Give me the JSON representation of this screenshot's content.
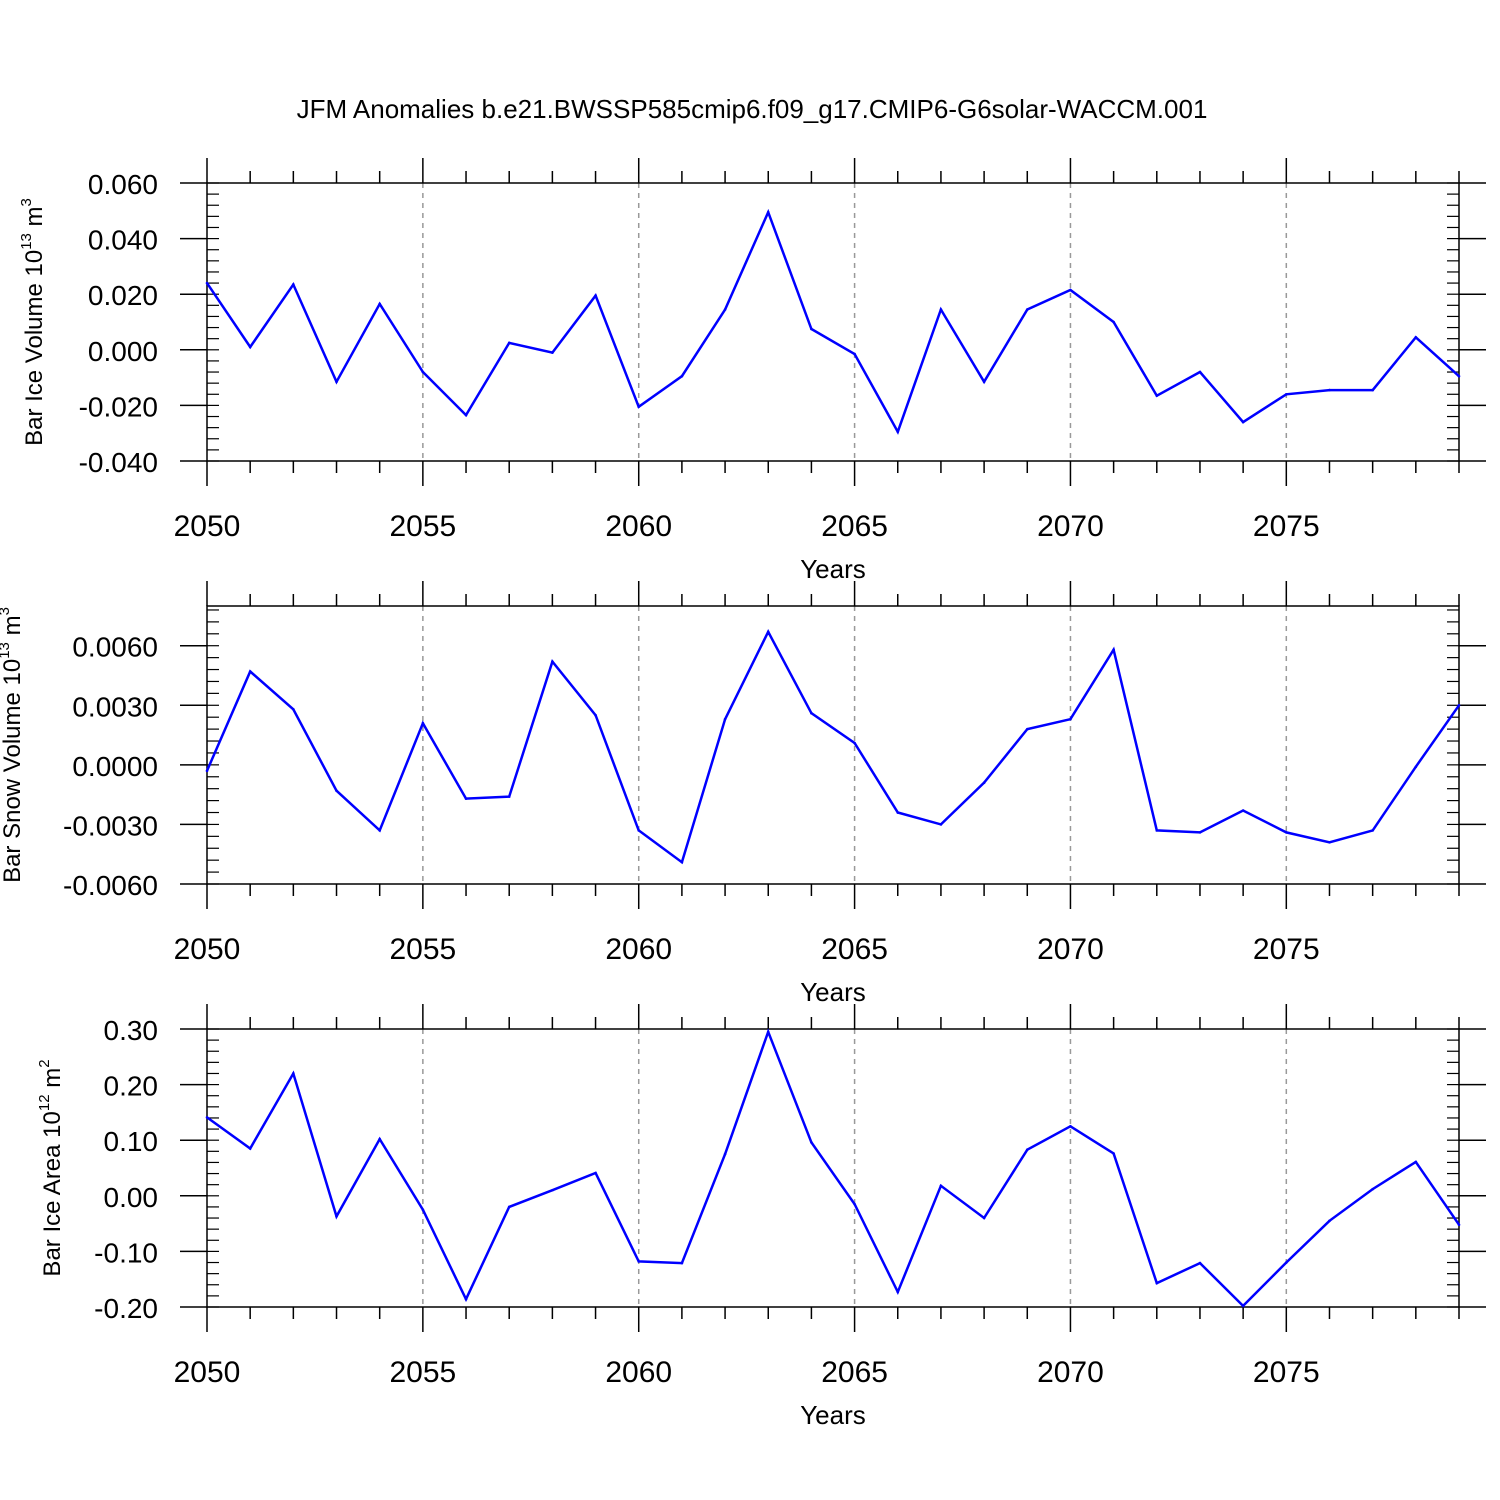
{
  "title": "JFM Anomalies b.e21.BWSSP585cmip6.f09_g17.CMIP6-G6solar-WACCM.001",
  "series_color": "#0000ff",
  "chart_data": [
    {
      "type": "line",
      "title": "JFM Anomalies b.e21.BWSSP585cmip6.f09_g17.CMIP6-G6solar-WACCM.001",
      "xlabel": "Years",
      "ylabel": {
        "text": "Bar Ice Volume 10",
        "exp": "13",
        "unit": " m",
        "unit_exp": "3"
      },
      "xlim": [
        2050,
        2079
      ],
      "ylim": [
        -0.04,
        0.06
      ],
      "yticks": [
        0.06,
        0.04,
        0.02,
        0.0,
        -0.02,
        -0.04
      ],
      "ytick_labels": [
        "0.060",
        "0.040",
        "0.020",
        "0.000",
        "-0.020",
        "-0.040"
      ],
      "xticks": [
        2050,
        2055,
        2060,
        2065,
        2070,
        2075
      ],
      "xtick_labels": [
        "2050",
        "2055",
        "2060",
        "2065",
        "2070",
        "2075"
      ],
      "grid": "dashed vertical at major x ticks",
      "x": [
        2050,
        2051,
        2052,
        2053,
        2054,
        2055,
        2056,
        2057,
        2058,
        2059,
        2060,
        2061,
        2062,
        2063,
        2064,
        2065,
        2066,
        2067,
        2068,
        2069,
        2070,
        2071,
        2072,
        2073,
        2074,
        2075,
        2076,
        2077,
        2078,
        2079
      ],
      "values": [
        0.024,
        0.001,
        0.0235,
        -0.0115,
        0.0165,
        -0.008,
        -0.0235,
        0.0025,
        -0.001,
        0.0195,
        -0.0205,
        -0.0095,
        0.0145,
        0.0495,
        0.0075,
        -0.0015,
        -0.0295,
        0.0145,
        -0.0115,
        0.0145,
        0.0215,
        0.01,
        -0.0165,
        -0.008,
        -0.026,
        -0.016,
        -0.0145,
        -0.0145,
        0.0045,
        -0.0095
      ]
    },
    {
      "type": "line",
      "xlabel": "Years",
      "ylabel": {
        "text": "Bar Snow Volume 10",
        "exp": "13",
        "unit": " m",
        "unit_exp": "3"
      },
      "xlim": [
        2050,
        2079
      ],
      "ylim": [
        -0.006,
        0.008
      ],
      "yticks": [
        0.006,
        0.003,
        0.0,
        -0.003,
        -0.006
      ],
      "ytick_labels": [
        "0.0060",
        "0.0030",
        "0.0000",
        "-0.0030",
        "-0.0060"
      ],
      "xticks": [
        2050,
        2055,
        2060,
        2065,
        2070,
        2075
      ],
      "xtick_labels": [
        "2050",
        "2055",
        "2060",
        "2065",
        "2070",
        "2075"
      ],
      "grid": "dashed vertical at major x ticks",
      "x": [
        2050,
        2051,
        2052,
        2053,
        2054,
        2055,
        2056,
        2057,
        2058,
        2059,
        2060,
        2061,
        2062,
        2063,
        2064,
        2065,
        2066,
        2067,
        2068,
        2069,
        2070,
        2071,
        2072,
        2073,
        2074,
        2075,
        2076,
        2077,
        2078,
        2079
      ],
      "values": [
        -0.0003,
        0.0047,
        0.0028,
        -0.0013,
        -0.0033,
        0.0021,
        -0.0017,
        -0.0016,
        0.0052,
        0.0025,
        -0.0033,
        -0.0049,
        0.0023,
        0.0067,
        0.0026,
        0.0011,
        -0.0024,
        -0.003,
        -0.0009,
        0.0018,
        0.0023,
        0.0058,
        -0.0033,
        -0.0034,
        -0.0023,
        -0.0034,
        -0.0039,
        -0.0033,
        -0.0001,
        0.003
      ]
    },
    {
      "type": "line",
      "xlabel": "Years",
      "ylabel": {
        "text": "Bar Ice Area 10",
        "exp": "12",
        "unit": " m",
        "unit_exp": "2"
      },
      "xlim": [
        2050,
        2079
      ],
      "ylim": [
        -0.2,
        0.3
      ],
      "yticks": [
        0.3,
        0.2,
        0.1,
        0.0,
        -0.1,
        -0.2
      ],
      "ytick_labels": [
        "0.30",
        "0.20",
        "0.10",
        "0.00",
        "-0.10",
        "-0.20"
      ],
      "xticks": [
        2050,
        2055,
        2060,
        2065,
        2070,
        2075
      ],
      "xtick_labels": [
        "2050",
        "2055",
        "2060",
        "2065",
        "2070",
        "2075"
      ],
      "grid": "dashed vertical at major x ticks",
      "x": [
        2050,
        2051,
        2052,
        2053,
        2054,
        2055,
        2056,
        2057,
        2058,
        2059,
        2060,
        2061,
        2062,
        2063,
        2064,
        2065,
        2066,
        2067,
        2068,
        2069,
        2070,
        2071,
        2072,
        2073,
        2074,
        2075,
        2076,
        2077,
        2078,
        2079
      ],
      "values": [
        0.141,
        0.085,
        0.22,
        -0.037,
        0.102,
        -0.025,
        -0.186,
        -0.02,
        0.01,
        0.041,
        -0.118,
        -0.121,
        0.075,
        0.295,
        0.096,
        -0.015,
        -0.173,
        0.018,
        -0.04,
        0.083,
        0.125,
        0.076,
        -0.157,
        -0.121,
        -0.198,
        -0.12,
        -0.045,
        0.012,
        0.061,
        -0.052
      ]
    }
  ]
}
